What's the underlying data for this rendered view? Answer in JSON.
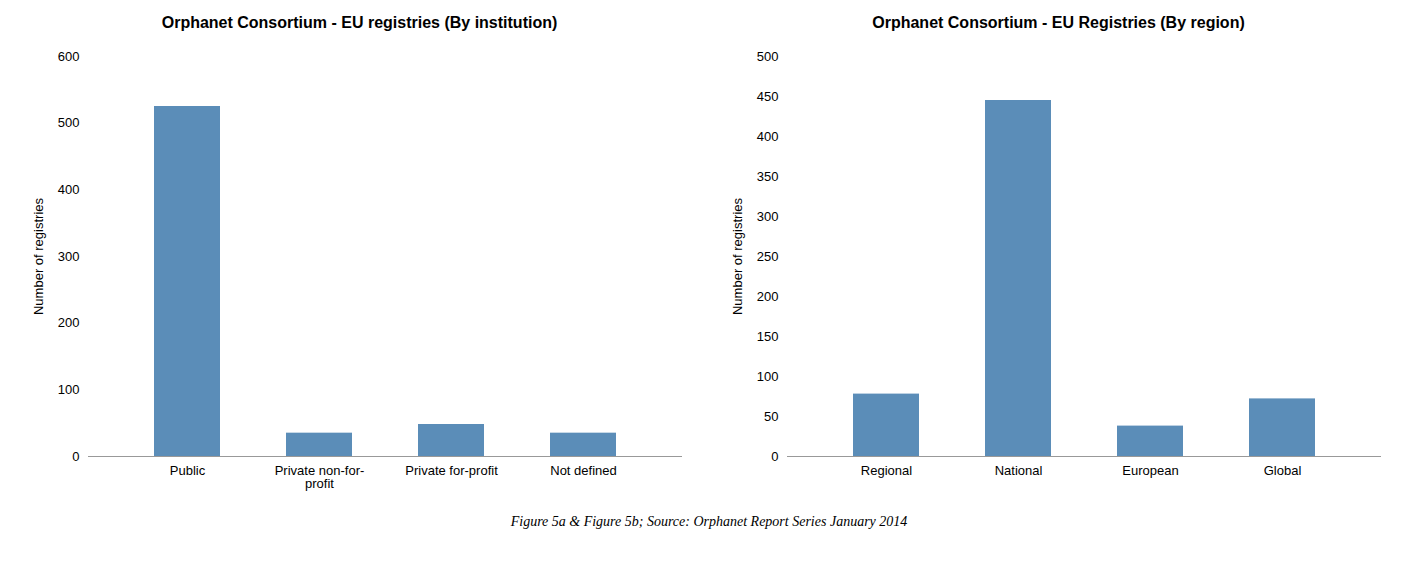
{
  "chart_data": [
    {
      "type": "bar",
      "title": "Orphanet Consortium - EU registries (By institution)",
      "categories": [
        "Public",
        "Private non-for-\nprofit",
        "Private for-profit",
        "Not defined"
      ],
      "values": [
        525,
        35,
        48,
        35
      ],
      "color": "#5B8DB8",
      "ylim": [
        0,
        600
      ],
      "yticks": [
        0,
        100,
        200,
        300,
        400,
        500,
        600
      ],
      "ylabel": "Number of registries"
    },
    {
      "type": "bar",
      "title": "Orphanet Consortium - EU Registries (By region)",
      "categories": [
        "Regional",
        "National",
        "European",
        "Global"
      ],
      "values": [
        78,
        445,
        38,
        72
      ],
      "color": "#5B8DB8",
      "ylim": [
        0,
        500
      ],
      "yticks": [
        0,
        50,
        100,
        150,
        200,
        250,
        300,
        350,
        400,
        450,
        500
      ],
      "ylabel": "Number of registries"
    }
  ],
  "caption": "Figure 5a & Figure 5b; Source: Orphanet Report Series January 2014"
}
